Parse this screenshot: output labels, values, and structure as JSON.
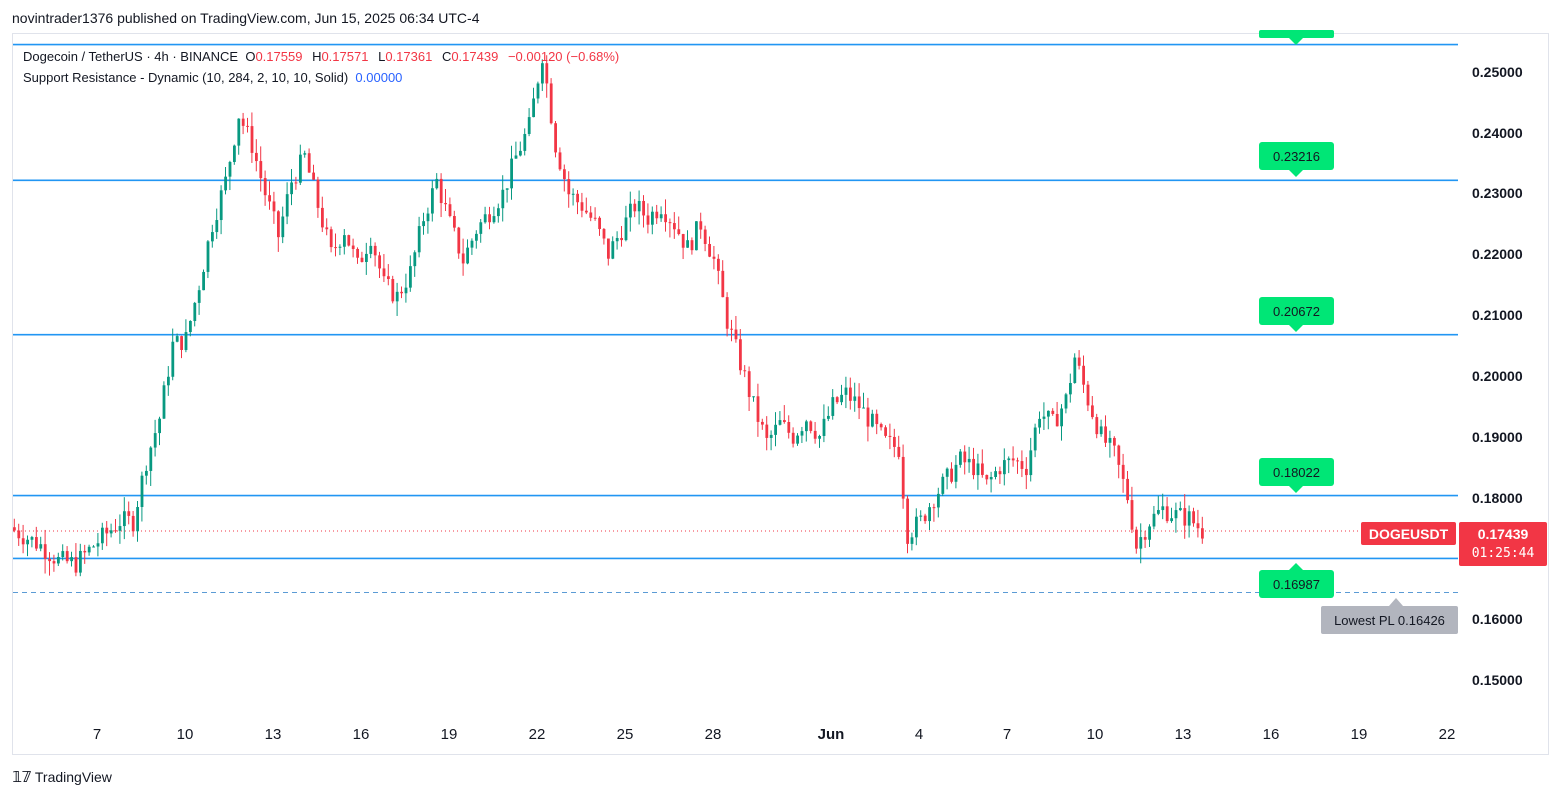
{
  "header": {
    "published_text": "novintrader1376 published on TradingView.com, Jun 15, 2025 06:34 UTC-4"
  },
  "legend": {
    "symbol_line": "Dogecoin / TetherUS · 4h · BINANCE",
    "open_label": "O",
    "open": "0.17559",
    "high_label": "H",
    "high": "0.17571",
    "low_label": "L",
    "low": "0.17361",
    "close_label": "C",
    "close": "0.17439",
    "change": "−0.00120 (−0.68%)",
    "indicator": "Support Resistance - Dynamic (10, 284, 2, 10, 10, Solid)",
    "indicator_value": "0.00000"
  },
  "price_axis": {
    "labels": [
      "0.25000",
      "0.24000",
      "0.23000",
      "0.22000",
      "0.21000",
      "0.20000",
      "0.19000",
      "0.18000",
      "0.17000",
      "0.16000",
      "0.15000"
    ]
  },
  "time_axis": {
    "labels": [
      "7",
      "10",
      "13",
      "16",
      "19",
      "22",
      "25",
      "28",
      "Jun",
      "4",
      "7",
      "10",
      "13",
      "16",
      "19",
      "22"
    ]
  },
  "levels": [
    {
      "value": "0.25452",
      "show_badge": false
    },
    {
      "value": "0.23216",
      "show_badge": true
    },
    {
      "value": "0.20672",
      "show_badge": true
    },
    {
      "value": "0.18022",
      "show_badge": true
    },
    {
      "value": "0.16987",
      "show_badge": true
    }
  ],
  "symbol_tag": "DOGEUSDT",
  "last_price": "0.17439",
  "countdown": "01:25:44",
  "lowest_label": "Lowest PL 0.16426",
  "colors": {
    "up": "#089981",
    "down": "#f23645",
    "level": "#2196f3",
    "badge": "#00e676"
  },
  "footer": {
    "logo_icon": "tradingview-logo-icon",
    "brand": "TradingView"
  },
  "chart_data": {
    "type": "candlestick",
    "interval": "4h",
    "ylim": [
      0.145,
      0.257
    ],
    "horizontal_levels": [
      0.25452,
      0.23216,
      0.20672,
      0.18022,
      0.16987
    ],
    "lowest_pl": 0.16426,
    "last_close": 0.17439,
    "approx_close_path": [
      [
        0,
        0.1745
      ],
      [
        6,
        0.172
      ],
      [
        10,
        0.1695
      ],
      [
        14,
        0.169
      ],
      [
        18,
        0.172
      ],
      [
        21,
        0.174
      ],
      [
        24,
        0.176
      ],
      [
        27,
        0.176
      ],
      [
        30,
        0.186
      ],
      [
        33,
        0.193
      ],
      [
        36,
        0.205
      ],
      [
        39,
        0.206
      ],
      [
        42,
        0.215
      ],
      [
        45,
        0.225
      ],
      [
        48,
        0.232
      ],
      [
        51,
        0.243
      ],
      [
        54,
        0.238
      ],
      [
        57,
        0.23
      ],
      [
        60,
        0.223
      ],
      [
        63,
        0.232
      ],
      [
        66,
        0.236
      ],
      [
        69,
        0.228
      ],
      [
        72,
        0.22
      ],
      [
        75,
        0.224
      ],
      [
        78,
        0.218
      ],
      [
        81,
        0.223
      ],
      [
        84,
        0.215
      ],
      [
        87,
        0.213
      ],
      [
        90,
        0.217
      ],
      [
        93,
        0.226
      ],
      [
        96,
        0.232
      ],
      [
        99,
        0.225
      ],
      [
        102,
        0.219
      ],
      [
        105,
        0.224
      ],
      [
        108,
        0.227
      ],
      [
        111,
        0.23
      ],
      [
        114,
        0.236
      ],
      [
        117,
        0.241
      ],
      [
        120,
        0.253
      ],
      [
        123,
        0.238
      ],
      [
        126,
        0.23
      ],
      [
        129,
        0.228
      ],
      [
        132,
        0.225
      ],
      [
        135,
        0.22
      ],
      [
        138,
        0.224
      ],
      [
        141,
        0.228
      ],
      [
        144,
        0.226
      ],
      [
        147,
        0.228
      ],
      [
        150,
        0.225
      ],
      [
        153,
        0.221
      ],
      [
        156,
        0.225
      ],
      [
        159,
        0.219
      ],
      [
        162,
        0.209
      ],
      [
        165,
        0.202
      ],
      [
        168,
        0.195
      ],
      [
        171,
        0.189
      ],
      [
        174,
        0.192
      ],
      [
        177,
        0.19
      ],
      [
        180,
        0.193
      ],
      [
        183,
        0.19
      ],
      [
        186,
        0.195
      ],
      [
        189,
        0.197
      ],
      [
        192,
        0.195
      ],
      [
        195,
        0.192
      ],
      [
        198,
        0.189
      ],
      [
        201,
        0.188
      ],
      [
        203,
        0.174
      ],
      [
        206,
        0.176
      ],
      [
        209,
        0.18
      ],
      [
        212,
        0.183
      ],
      [
        215,
        0.186
      ],
      [
        218,
        0.185
      ],
      [
        221,
        0.182
      ],
      [
        224,
        0.185
      ],
      [
        227,
        0.186
      ],
      [
        230,
        0.185
      ],
      [
        233,
        0.194
      ],
      [
        236,
        0.192
      ],
      [
        239,
        0.196
      ],
      [
        241,
        0.203
      ],
      [
        244,
        0.196
      ],
      [
        247,
        0.19
      ],
      [
        250,
        0.187
      ],
      [
        253,
        0.18
      ],
      [
        255,
        0.172
      ],
      [
        258,
        0.176
      ],
      [
        261,
        0.178
      ],
      [
        264,
        0.177
      ],
      [
        267,
        0.1765
      ],
      [
        270,
        0.1744
      ]
    ]
  }
}
